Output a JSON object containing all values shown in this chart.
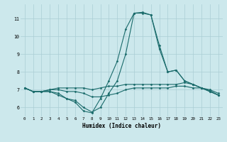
{
  "title": "",
  "xlabel": "Humidex (Indice chaleur)",
  "ylabel": "",
  "xlim": [
    -0.5,
    23.5
  ],
  "ylim": [
    5.5,
    11.8
  ],
  "yticks": [
    6,
    7,
    8,
    9,
    10,
    11
  ],
  "xticks": [
    0,
    1,
    2,
    3,
    4,
    5,
    6,
    7,
    8,
    9,
    10,
    11,
    12,
    13,
    14,
    15,
    16,
    17,
    18,
    19,
    20,
    21,
    22,
    23
  ],
  "bg_color": "#cce8ec",
  "line_color": "#1a6b6b",
  "grid_color": "#aacdd4",
  "lines": [
    [
      7.1,
      6.9,
      6.9,
      6.9,
      6.8,
      6.5,
      6.3,
      5.8,
      5.7,
      6.5,
      7.5,
      8.6,
      10.4,
      11.3,
      11.3,
      11.2,
      9.3,
      8.0,
      8.1,
      7.5,
      7.3,
      7.1,
      6.9,
      6.7
    ],
    [
      7.1,
      6.9,
      6.9,
      7.0,
      7.0,
      6.9,
      6.9,
      6.8,
      6.6,
      6.6,
      6.7,
      6.8,
      7.0,
      7.1,
      7.1,
      7.1,
      7.1,
      7.1,
      7.2,
      7.2,
      7.1,
      7.1,
      6.9,
      6.7
    ],
    [
      7.1,
      6.9,
      6.9,
      7.0,
      7.1,
      7.1,
      7.1,
      7.1,
      7.0,
      7.1,
      7.2,
      7.2,
      7.3,
      7.3,
      7.3,
      7.3,
      7.3,
      7.3,
      7.3,
      7.4,
      7.3,
      7.1,
      7.0,
      6.8
    ],
    [
      7.1,
      6.9,
      6.9,
      6.9,
      6.7,
      6.5,
      6.4,
      6.0,
      5.75,
      6.0,
      6.8,
      7.5,
      9.0,
      11.3,
      11.35,
      11.2,
      9.5,
      8.0,
      8.1,
      7.5,
      7.3,
      7.1,
      6.95,
      6.7
    ]
  ]
}
